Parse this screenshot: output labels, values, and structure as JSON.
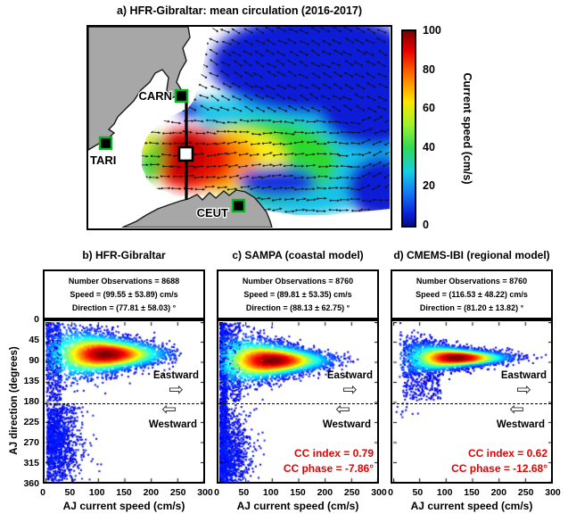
{
  "panel_a": {
    "title": "a) HFR-Gibraltar: mean circulation (2016-2017)",
    "stations": [
      {
        "name": "CARN",
        "marker": "black-square-green-border"
      },
      {
        "name": "TARI",
        "marker": "black-square-green-border"
      },
      {
        "name": "CEUT",
        "marker": "black-square-green-border"
      }
    ],
    "transect_marker": "white-square",
    "colorbar": {
      "label": "Current speed (cm/s)",
      "ticks": [
        100,
        80,
        60,
        40,
        20,
        0
      ],
      "min": 0,
      "max": 100
    }
  },
  "axes": {
    "xlabel": "AJ current speed (cm/s)",
    "ylabel": "AJ direction (degrees)",
    "xticks": [
      0,
      50,
      100,
      150,
      200,
      250,
      300
    ],
    "yticks": [
      0,
      45,
      90,
      135,
      180,
      225,
      270,
      315,
      360
    ],
    "xlim": [
      0,
      300
    ],
    "ylim": [
      0,
      360
    ],
    "y_inverted": true,
    "divider_deg": 180,
    "east_label": "Eastward",
    "west_label": "Westward",
    "east_arrow": "⇨",
    "west_arrow": "⇦"
  },
  "chart_data": [
    {
      "id": "b",
      "type": "scatter",
      "title": "b) HFR-Gibraltar",
      "stats": {
        "number_observations": 8688,
        "speed_mean": 99.55,
        "speed_std": 53.89,
        "direction_mean": 77.81,
        "direction_std": 58.03
      },
      "stats_lines": [
        "Number Observations = 8688",
        "Speed = (99.55 ± 53.89) cm/s",
        "Direction = (77.81 ± 58.03) °"
      ],
      "cc_lines": [
        "",
        ""
      ],
      "render": {
        "seed": 11,
        "east": {
          "n": 4300,
          "sMean": 115,
          "sStd": 52,
          "sMin": 3,
          "sMax": 256,
          "dc": 72,
          "sigBase": 30,
          "sigMin": 8,
          "tau": 110
        },
        "west": {
          "n": 1250,
          "sStd": 30,
          "sMin": 3,
          "sMax": 150,
          "dc": 265,
          "dSig": 62,
          "dLo": 183,
          "dHi": 359
        },
        "extra": {
          "n": 450,
          "sLo": 2,
          "sHi": 30,
          "dLo": 2,
          "dHi": 178
        }
      }
    },
    {
      "id": "c",
      "type": "scatter",
      "title": "c) SAMPA (coastal model)",
      "stats": {
        "number_observations": 8760,
        "speed_mean": 89.81,
        "speed_std": 53.35,
        "direction_mean": 88.13,
        "direction_std": 62.75
      },
      "stats_lines": [
        "Number Observations = 8760",
        "Speed = (89.81 ± 53.35) cm/s",
        "Direction = (88.13 ± 62.75) °"
      ],
      "cc_lines": [
        "CC index = 0.79",
        "CC phase = -7.86°"
      ],
      "cc": {
        "index": 0.79,
        "phase_deg": -7.86
      },
      "render": {
        "seed": 23,
        "east": {
          "n": 4200,
          "sMean": 100,
          "sStd": 50,
          "sMin": 3,
          "sMax": 282,
          "dc": 86,
          "sigBase": 28,
          "sigMin": 7,
          "tau": 100
        },
        "west": {
          "n": 950,
          "sStd": 26,
          "sMin": 2,
          "sMax": 120,
          "dc": 300,
          "dSig": 58,
          "dLo": 183,
          "dHi": 359
        },
        "stripe": {
          "n": 800,
          "sLo": 1,
          "sHi": 14,
          "dLo": 2,
          "dHi": 358
        },
        "extra": {
          "n": 350,
          "sLo": 2,
          "sHi": 40,
          "dLo": 2,
          "dHi": 178
        }
      }
    },
    {
      "id": "d",
      "type": "scatter",
      "title": "d) CMEMS-IBI (regional model)",
      "stats": {
        "number_observations": 8760,
        "speed_mean": 116.53,
        "speed_std": 48.22,
        "direction_mean": 81.2,
        "direction_std": 13.82
      },
      "stats_lines": [
        "Number Observations = 8760",
        "Speed = (116.53 ± 48.22) cm/s",
        "Direction = (81.20 ± 13.82) °"
      ],
      "cc_lines": [
        "CC index = 0.62",
        "CC phase = -12.68°"
      ],
      "cc": {
        "index": 0.62,
        "phase_deg": -12.68
      },
      "render": {
        "seed": 37,
        "east": {
          "n": 4600,
          "sMean": 120,
          "sStd": 45,
          "sMin": 12,
          "sMax": 290,
          "dc": 80,
          "sigBase": 27,
          "sigMin": 5,
          "tau": 70
        },
        "west": {
          "n": 12,
          "sStd": 20,
          "sMin": 5,
          "sMax": 60,
          "dc": 200,
          "dSig": 15,
          "dLo": 182,
          "dHi": 230
        },
        "extra": {
          "n": 420,
          "sLo": 18,
          "sHi": 90,
          "dLo": 40,
          "dHi": 176
        }
      }
    }
  ],
  "colors": {
    "cc_text": "#e80000",
    "land": "#a7a7a7",
    "station_border": "#00b822"
  }
}
